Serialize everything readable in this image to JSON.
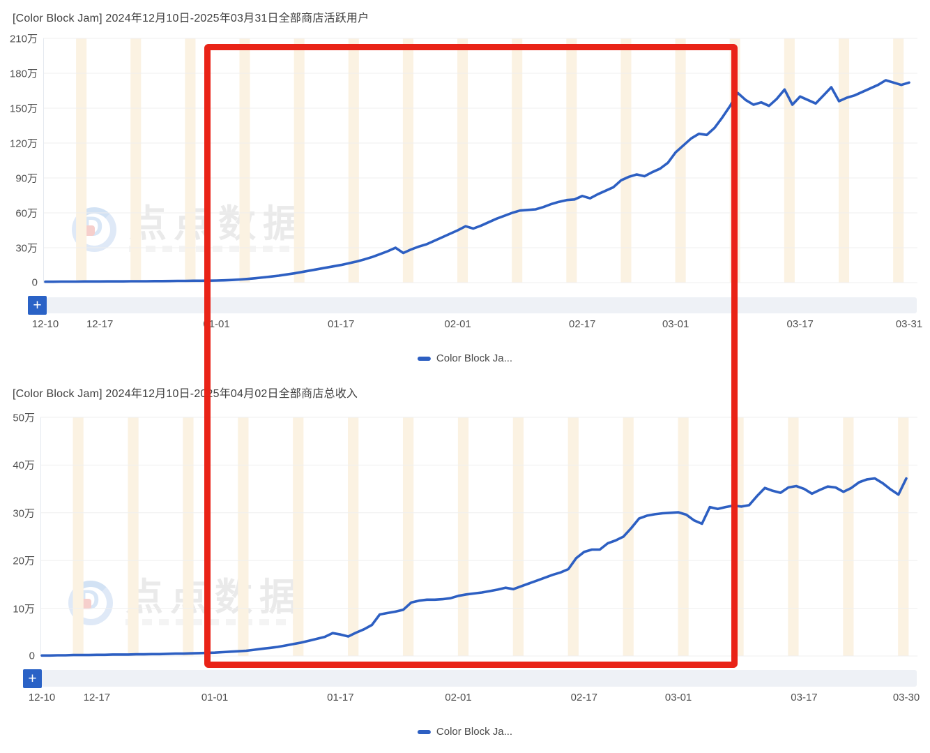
{
  "page": {
    "background": "#ffffff"
  },
  "watermark": {
    "brand_text": "点点数据"
  },
  "annotation": {
    "shape": "rectangle",
    "color": "#e92317"
  },
  "chart_data": [
    {
      "type": "line",
      "title": "[Color Block Jam] 2024年12月10日-2025年03月31日全部商店活跃用户",
      "legend_label": "Color Block Ja...",
      "legend_position": "bottom-center",
      "toolbar_add_label": "+",
      "y_unit": "万",
      "ylim": [
        0,
        210
      ],
      "y_tick_labels": [
        "210万",
        "180万",
        "150万",
        "120万",
        "90万",
        "60万",
        "30万",
        "0"
      ],
      "x_ticks": [
        {
          "label": "12-10",
          "day": 0
        },
        {
          "label": "12-17",
          "day": 7
        },
        {
          "label": "01-01",
          "day": 22
        },
        {
          "label": "01-17",
          "day": 38
        },
        {
          "label": "02-01",
          "day": 53
        },
        {
          "label": "02-17",
          "day": 69
        },
        {
          "label": "03-01",
          "day": 81
        },
        {
          "label": "03-17",
          "day": 97
        },
        {
          "label": "03-31",
          "day": 111
        }
      ],
      "grid": true,
      "line_color": "#2d5fc2",
      "weekend_band_color": "#fbf2e2",
      "series": [
        {
          "name": "Color Block Ja...",
          "start_date": "2024-12-10",
          "end_date": "2025-03-31",
          "unit": "万",
          "values": [
            0.8,
            0.8,
            0.9,
            0.9,
            0.9,
            1.0,
            1.0,
            1.0,
            1.1,
            1.1,
            1.1,
            1.2,
            1.2,
            1.2,
            1.3,
            1.3,
            1.4,
            1.5,
            1.5,
            1.6,
            1.6,
            1.7,
            1.8,
            2.0,
            2.3,
            2.7,
            3.2,
            3.8,
            4.5,
            5.2,
            6.0,
            7.0,
            8.0,
            9.2,
            10.4,
            11.6,
            12.8,
            14.0,
            15.2,
            16.6,
            18.2,
            20.0,
            22.0,
            24.5,
            27.0,
            30.0,
            25.5,
            28.5,
            31.0,
            33.0,
            36.0,
            39.0,
            42.0,
            45.0,
            48.5,
            46.5,
            49.0,
            52.0,
            55.0,
            57.5,
            60.0,
            62.0,
            62.5,
            63.0,
            65.0,
            67.5,
            69.5,
            71.0,
            71.5,
            74.5,
            72.5,
            76.0,
            79.0,
            82.0,
            88.0,
            91.0,
            93.0,
            91.5,
            95.0,
            98.0,
            103.0,
            112,
            118,
            124,
            128,
            127,
            133,
            142,
            152,
            163,
            157,
            153,
            155,
            152,
            158,
            166,
            153,
            160,
            157,
            154,
            161,
            168,
            156,
            159,
            161,
            164,
            167,
            170,
            174,
            172,
            170,
            172
          ]
        }
      ]
    },
    {
      "type": "line",
      "title": "[Color Block Jam] 2024年12月10日-2025年04月02日全部商店总收入",
      "legend_label": "Color Block Ja...",
      "legend_position": "bottom-center",
      "toolbar_add_label": "+",
      "y_unit": "万",
      "ylim": [
        0,
        50
      ],
      "y_tick_labels": [
        "50万",
        "40万",
        "30万",
        "20万",
        "10万",
        "0"
      ],
      "x_ticks": [
        {
          "label": "12-10",
          "day": 0
        },
        {
          "label": "12-17",
          "day": 7
        },
        {
          "label": "01-01",
          "day": 22
        },
        {
          "label": "01-17",
          "day": 38
        },
        {
          "label": "02-01",
          "day": 53
        },
        {
          "label": "02-17",
          "day": 69
        },
        {
          "label": "03-01",
          "day": 81
        },
        {
          "label": "03-17",
          "day": 97
        },
        {
          "label": "03-30",
          "day": 110
        }
      ],
      "grid": true,
      "line_color": "#2d5fc2",
      "weekend_band_color": "#fbf2e2",
      "series": [
        {
          "name": "Color Block Ja...",
          "start_date": "2024-12-10",
          "end_date": "2025-03-30",
          "unit": "万",
          "values": [
            0.1,
            0.1,
            0.15,
            0.15,
            0.2,
            0.2,
            0.2,
            0.25,
            0.25,
            0.3,
            0.3,
            0.3,
            0.35,
            0.35,
            0.4,
            0.4,
            0.45,
            0.5,
            0.5,
            0.55,
            0.6,
            0.65,
            0.7,
            0.8,
            0.9,
            1.0,
            1.1,
            1.3,
            1.5,
            1.7,
            1.9,
            2.2,
            2.5,
            2.8,
            3.2,
            3.6,
            4.0,
            4.8,
            4.5,
            4.1,
            4.9,
            5.6,
            6.5,
            8.7,
            9.0,
            9.3,
            9.7,
            11.2,
            11.6,
            11.8,
            11.8,
            11.9,
            12.1,
            12.6,
            12.9,
            13.1,
            13.3,
            13.6,
            13.9,
            14.3,
            14.0,
            14.6,
            15.2,
            15.8,
            16.4,
            17.0,
            17.5,
            18.2,
            20.5,
            21.8,
            22.3,
            22.3,
            23.6,
            24.2,
            25.0,
            26.8,
            28.8,
            29.4,
            29.7,
            29.9,
            30.0,
            30.1,
            29.6,
            28.4,
            27.7,
            31.2,
            30.8,
            31.2,
            31.5,
            31.3,
            31.6,
            33.5,
            35.2,
            34.6,
            34.2,
            35.3,
            35.6,
            35.0,
            34.0,
            34.8,
            35.5,
            35.3,
            34.4,
            35.2,
            36.4,
            37.0,
            37.2,
            36.2,
            34.9,
            33.8,
            37.2
          ]
        }
      ]
    }
  ]
}
